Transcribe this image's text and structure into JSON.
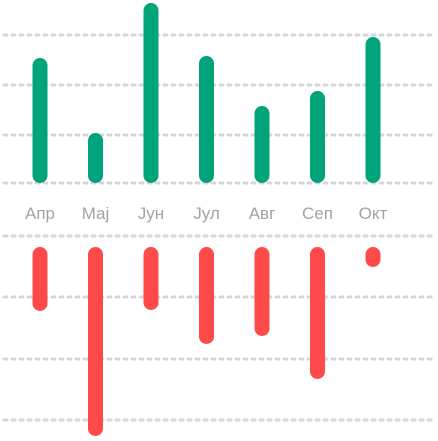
{
  "chart_data": {
    "type": "bar",
    "categories": [
      "Апр",
      "Мај",
      "Јун",
      "Јул",
      "Авг",
      "Сеп",
      "Окт"
    ],
    "series": [
      {
        "values": [
          125,
          50,
          180,
          127,
          77,
          92,
          146
        ],
        "color": "#00a37a"
      },
      {
        "values": [
          -64,
          -189,
          -63,
          -97,
          -89,
          -132,
          -20
        ],
        "color": "#ff4a4a"
      }
    ],
    "grid": true,
    "legend": "none"
  }
}
